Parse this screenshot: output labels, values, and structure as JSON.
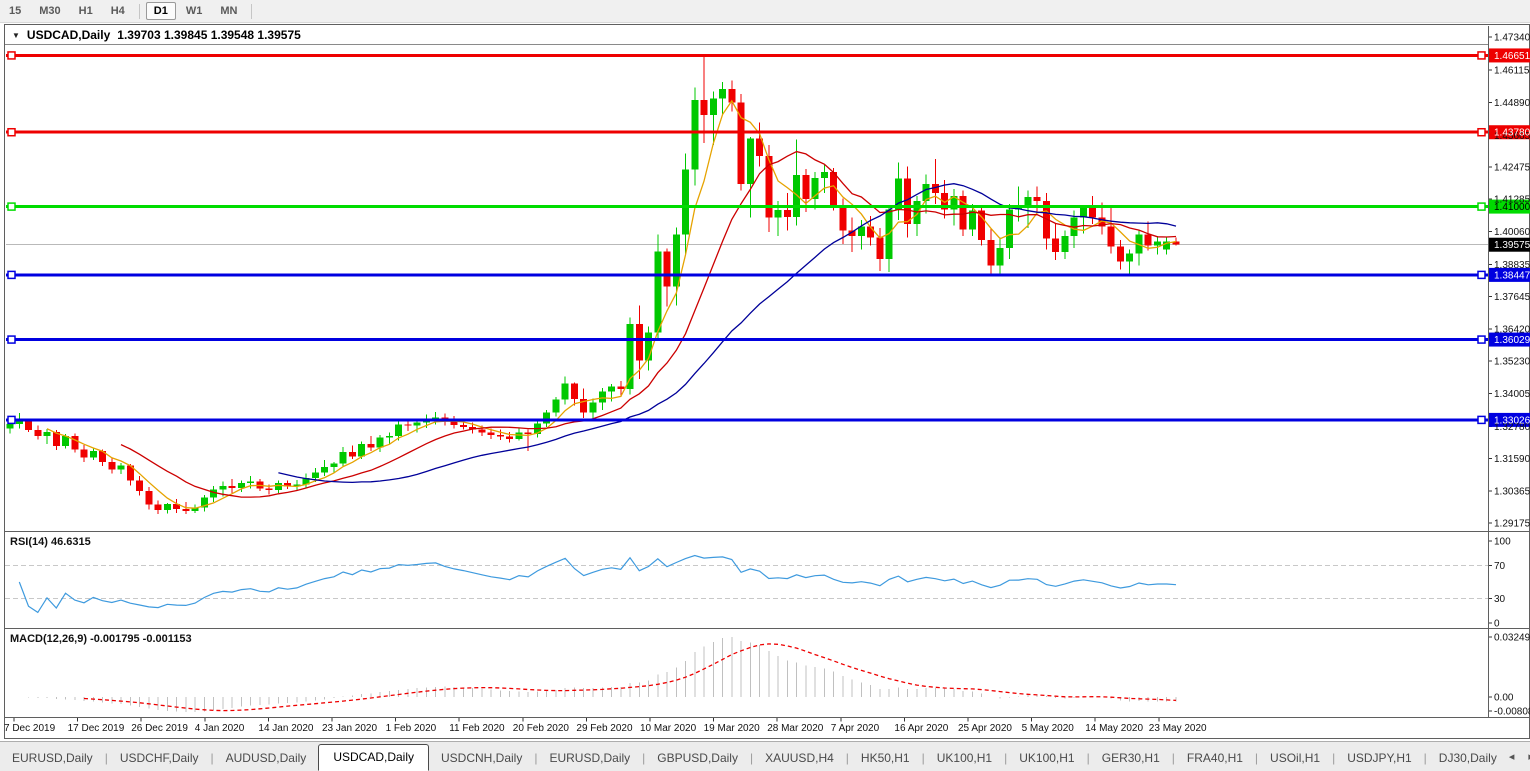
{
  "toolbar": {
    "timeframes": [
      "15",
      "M30",
      "H1",
      "H4",
      "D1",
      "W1",
      "MN"
    ],
    "active": "D1"
  },
  "chart_data": {
    "type": "candlestick",
    "title_line": "USDCAD,Daily",
    "symbol": "USDCAD",
    "timeframe": "Daily",
    "ohlc_string": "1.39703 1.39845 1.39548 1.39575",
    "current_bar": {
      "open": 1.39703,
      "high": 1.39845,
      "low": 1.39548,
      "close": 1.39575
    },
    "colors": {
      "bull": "#00c800",
      "bear": "#f00000",
      "ma_fast": "#e6a300",
      "ma_mid": "#cc0000",
      "ma_slow": "#000099",
      "current_price_line": "#b9b9b9",
      "resistance": "#ee0000",
      "pivot": "#00dc00",
      "support": "#0000e0"
    },
    "y_axis_ticks": [
      "1.47340",
      "1.46115",
      "1.44890",
      "1.43665",
      "1.42475",
      "1.41285",
      "1.40060",
      "1.38835",
      "1.37645",
      "1.36420",
      "1.35230",
      "1.34005",
      "1.32780",
      "1.31590",
      "1.30365",
      "1.29175"
    ],
    "x_axis_labels": [
      "7 Dec 2019",
      "17 Dec 2019",
      "26 Dec 2019",
      "4 Jan 2020",
      "14 Jan 2020",
      "23 Jan 2020",
      "1 Feb 2020",
      "11 Feb 2020",
      "20 Feb 2020",
      "29 Feb 2020",
      "10 Mar 2020",
      "19 Mar 2020",
      "28 Mar 2020",
      "7 Apr 2020",
      "16 Apr 2020",
      "25 Apr 2020",
      "5 May 2020",
      "14 May 2020",
      "23 May 2020"
    ],
    "levels": [
      {
        "price": 1.46651,
        "label": "1.46651",
        "color": "#ee0000",
        "kind": "resistance"
      },
      {
        "price": 1.4378,
        "label": "1.43780",
        "color": "#ee0000",
        "kind": "resistance"
      },
      {
        "price": 1.41,
        "label": "1.41000",
        "color": "#00dc00",
        "kind": "pivot"
      },
      {
        "price": 1.38447,
        "label": "1.38447",
        "color": "#0000e0",
        "kind": "support"
      },
      {
        "price": 1.36029,
        "label": "1.36029",
        "color": "#0000e0",
        "kind": "support"
      },
      {
        "price": 1.33026,
        "label": "1.33026",
        "color": "#0000e0",
        "kind": "support"
      }
    ],
    "current_price": {
      "value": 1.39575,
      "label": "1.39575",
      "badge_color": "#000000"
    },
    "moving_averages": [
      {
        "period": 5,
        "color": "#e6a300"
      },
      {
        "period": 13,
        "color": "#cc0000"
      },
      {
        "period": 30,
        "color": "#000099"
      }
    ],
    "bars": [
      [
        1.327,
        1.3302,
        1.3252,
        1.3288
      ],
      [
        1.3288,
        1.3328,
        1.327,
        1.3296
      ],
      [
        1.3296,
        1.3308,
        1.3258,
        1.3265
      ],
      [
        1.3265,
        1.3282,
        1.323,
        1.3242
      ],
      [
        1.3242,
        1.3268,
        1.3212,
        1.3258
      ],
      [
        1.3258,
        1.3265,
        1.319,
        1.3205
      ],
      [
        1.3205,
        1.325,
        1.3195,
        1.3242
      ],
      [
        1.3242,
        1.3252,
        1.318,
        1.3192
      ],
      [
        1.3192,
        1.3208,
        1.3145,
        1.3162
      ],
      [
        1.3162,
        1.3198,
        1.3152,
        1.3186
      ],
      [
        1.3186,
        1.3192,
        1.313,
        1.3146
      ],
      [
        1.3146,
        1.3162,
        1.3102,
        1.3118
      ],
      [
        1.3118,
        1.3142,
        1.31,
        1.3132
      ],
      [
        1.3132,
        1.3138,
        1.3058,
        1.3076
      ],
      [
        1.3076,
        1.3092,
        1.302,
        1.3036
      ],
      [
        1.3036,
        1.3052,
        1.2968,
        1.2986
      ],
      [
        1.2986,
        1.3002,
        1.295,
        1.2966
      ],
      [
        1.2966,
        1.2992,
        1.2952,
        1.2988
      ],
      [
        1.2988,
        1.3006,
        1.2954,
        1.297
      ],
      [
        1.297,
        1.2996,
        1.295,
        1.2962
      ],
      [
        1.2962,
        1.2986,
        1.2955,
        1.2976
      ],
      [
        1.2976,
        1.3022,
        1.296,
        1.3012
      ],
      [
        1.3012,
        1.3056,
        1.2996,
        1.3042
      ],
      [
        1.3042,
        1.3072,
        1.3016,
        1.3056
      ],
      [
        1.3056,
        1.3082,
        1.303,
        1.3048
      ],
      [
        1.3048,
        1.3076,
        1.3034,
        1.3066
      ],
      [
        1.3066,
        1.3092,
        1.3046,
        1.3072
      ],
      [
        1.3072,
        1.3082,
        1.3036,
        1.3046
      ],
      [
        1.3046,
        1.3062,
        1.3024,
        1.304
      ],
      [
        1.304,
        1.3076,
        1.303,
        1.3066
      ],
      [
        1.3066,
        1.3076,
        1.3044,
        1.3054
      ],
      [
        1.3054,
        1.3078,
        1.304,
        1.3062
      ],
      [
        1.3062,
        1.3102,
        1.3046,
        1.3086
      ],
      [
        1.3086,
        1.3122,
        1.307,
        1.3106
      ],
      [
        1.3106,
        1.3152,
        1.3092,
        1.3126
      ],
      [
        1.3126,
        1.3146,
        1.3106,
        1.314
      ],
      [
        1.314,
        1.3202,
        1.313,
        1.3182
      ],
      [
        1.3182,
        1.3206,
        1.3156,
        1.3166
      ],
      [
        1.3166,
        1.3222,
        1.3156,
        1.3212
      ],
      [
        1.3212,
        1.3242,
        1.3186,
        1.32
      ],
      [
        1.32,
        1.3246,
        1.3182,
        1.3236
      ],
      [
        1.3236,
        1.3256,
        1.3212,
        1.3242
      ],
      [
        1.3242,
        1.3302,
        1.3226,
        1.3286
      ],
      [
        1.3286,
        1.3306,
        1.3262,
        1.3282
      ],
      [
        1.3282,
        1.3302,
        1.3256,
        1.3292
      ],
      [
        1.3292,
        1.3322,
        1.3272,
        1.3306
      ],
      [
        1.3306,
        1.3332,
        1.3286,
        1.3312
      ],
      [
        1.3312,
        1.3326,
        1.3282,
        1.3296
      ],
      [
        1.3296,
        1.3318,
        1.327,
        1.3284
      ],
      [
        1.3284,
        1.3302,
        1.3266,
        1.3276
      ],
      [
        1.3276,
        1.3292,
        1.3252,
        1.3266
      ],
      [
        1.3266,
        1.3282,
        1.3242,
        1.3256
      ],
      [
        1.3256,
        1.327,
        1.3232,
        1.3246
      ],
      [
        1.3246,
        1.3266,
        1.3228,
        1.324
      ],
      [
        1.324,
        1.3258,
        1.3218,
        1.3232
      ],
      [
        1.3232,
        1.3272,
        1.3226,
        1.3256
      ],
      [
        1.3256,
        1.3266,
        1.3186,
        1.325
      ],
      [
        1.325,
        1.33,
        1.3236,
        1.329
      ],
      [
        1.329,
        1.334,
        1.3276,
        1.333
      ],
      [
        1.333,
        1.3388,
        1.3316,
        1.3378
      ],
      [
        1.3378,
        1.3465,
        1.336,
        1.3438
      ],
      [
        1.3438,
        1.3442,
        1.3356,
        1.338
      ],
      [
        1.338,
        1.342,
        1.331,
        1.333
      ],
      [
        1.333,
        1.3382,
        1.3304,
        1.3368
      ],
      [
        1.3368,
        1.3422,
        1.334,
        1.3408
      ],
      [
        1.3408,
        1.3436,
        1.3372,
        1.3428
      ],
      [
        1.3428,
        1.3448,
        1.3388,
        1.3418
      ],
      [
        1.3418,
        1.3686,
        1.3398,
        1.3662
      ],
      [
        1.3662,
        1.373,
        1.3456,
        1.3524
      ],
      [
        1.3524,
        1.3652,
        1.3488,
        1.363
      ],
      [
        1.363,
        1.3996,
        1.3602,
        1.3932
      ],
      [
        1.3932,
        1.3944,
        1.3726,
        1.3802
      ],
      [
        1.3802,
        1.4022,
        1.373,
        1.3996
      ],
      [
        1.3996,
        1.4298,
        1.3918,
        1.4238
      ],
      [
        1.4238,
        1.4546,
        1.4178,
        1.4498
      ],
      [
        1.4498,
        1.4668,
        1.4338,
        1.4442
      ],
      [
        1.4442,
        1.453,
        1.433,
        1.4505
      ],
      [
        1.4505,
        1.4565,
        1.444,
        1.454
      ],
      [
        1.454,
        1.4572,
        1.4455,
        1.449
      ],
      [
        1.449,
        1.452,
        1.416,
        1.4185
      ],
      [
        1.4185,
        1.436,
        1.406,
        1.4355
      ],
      [
        1.4355,
        1.4415,
        1.425,
        1.429
      ],
      [
        1.429,
        1.433,
        1.4005,
        1.406
      ],
      [
        1.406,
        1.412,
        1.399,
        1.4088
      ],
      [
        1.4088,
        1.415,
        1.401,
        1.4062
      ],
      [
        1.4062,
        1.435,
        1.403,
        1.4218
      ],
      [
        1.4218,
        1.424,
        1.408,
        1.4129
      ],
      [
        1.4129,
        1.423,
        1.409,
        1.4206
      ],
      [
        1.4206,
        1.426,
        1.415,
        1.423
      ],
      [
        1.423,
        1.4245,
        1.4085,
        1.4105
      ],
      [
        1.4105,
        1.413,
        1.396,
        1.401
      ],
      [
        1.401,
        1.406,
        1.393,
        1.399
      ],
      [
        1.399,
        1.405,
        1.394,
        1.4025
      ],
      [
        1.4025,
        1.4065,
        1.3955,
        1.3985
      ],
      [
        1.3985,
        1.402,
        1.386,
        1.3905
      ],
      [
        1.3905,
        1.4105,
        1.3855,
        1.409
      ],
      [
        1.409,
        1.4265,
        1.405,
        1.4205
      ],
      [
        1.4205,
        1.425,
        1.3985,
        1.4035
      ],
      [
        1.4035,
        1.414,
        1.399,
        1.412
      ],
      [
        1.412,
        1.422,
        1.4075,
        1.4185
      ],
      [
        1.4185,
        1.4278,
        1.411,
        1.415
      ],
      [
        1.415,
        1.42,
        1.4055,
        1.409
      ],
      [
        1.409,
        1.4165,
        1.403,
        1.414
      ],
      [
        1.414,
        1.416,
        1.399,
        1.4015
      ],
      [
        1.4015,
        1.411,
        1.399,
        1.4085
      ],
      [
        1.4085,
        1.4105,
        1.3955,
        1.3975
      ],
      [
        1.3975,
        1.402,
        1.385,
        1.388
      ],
      [
        1.388,
        1.3985,
        1.3845,
        1.3945
      ],
      [
        1.3945,
        1.411,
        1.3905,
        1.409
      ],
      [
        1.409,
        1.4175,
        1.4045,
        1.4095
      ],
      [
        1.4095,
        1.416,
        1.402,
        1.4135
      ],
      [
        1.4135,
        1.4175,
        1.408,
        1.412
      ],
      [
        1.412,
        1.415,
        1.394,
        1.398
      ],
      [
        1.398,
        1.4035,
        1.39,
        1.393
      ],
      [
        1.393,
        1.401,
        1.3905,
        1.399
      ],
      [
        1.399,
        1.4085,
        1.3945,
        1.406
      ],
      [
        1.406,
        1.4105,
        1.4,
        1.4095
      ],
      [
        1.4095,
        1.414,
        1.4035,
        1.406
      ],
      [
        1.406,
        1.4115,
        1.3995,
        1.4025
      ],
      [
        1.4025,
        1.4095,
        1.3925,
        1.395
      ],
      [
        1.395,
        1.3975,
        1.3865,
        1.3895
      ],
      [
        1.3895,
        1.394,
        1.385,
        1.3925
      ],
      [
        1.3925,
        1.401,
        1.388,
        1.3995
      ],
      [
        1.3995,
        1.4045,
        1.3935,
        1.3955
      ],
      [
        1.3955,
        1.399,
        1.392,
        1.397
      ],
      [
        1.394,
        1.3985,
        1.392,
        1.397
      ],
      [
        1.39703,
        1.39845,
        1.39548,
        1.39575
      ]
    ],
    "indicators": {
      "rsi": {
        "title": "RSI(14) 46.6315",
        "name": "RSI",
        "period": 14,
        "current": 46.6315,
        "axis_ticks": [
          100,
          70,
          30,
          0
        ],
        "guide_levels": [
          70,
          30
        ],
        "line_color": "#3e9ade"
      },
      "macd": {
        "title": "MACD(12,26,9) -0.001795 -0.001153",
        "fast": 12,
        "slow": 26,
        "signal_period": 9,
        "main_value": -0.001795,
        "signal_value": -0.001153,
        "axis_ticks": [
          "0.032493",
          "0.00",
          "-0.008086"
        ],
        "axis_max": 0.032493,
        "axis_min": -0.008086,
        "histogram_color": "#c0c0c0",
        "signal_color": "#ee0000"
      }
    }
  },
  "tabs": {
    "items": [
      "EURUSD,Daily",
      "USDCHF,Daily",
      "AUDUSD,Daily",
      "USDCAD,Daily",
      "USDCNH,Daily",
      "EURUSD,Daily",
      "GBPUSD,Daily",
      "XAUUSD,H4",
      "HK50,H1",
      "UK100,H1",
      "UK100,H1",
      "GER30,H1",
      "FRA40,H1",
      "USOil,H1",
      "USDJPY,H1",
      "DJ30,Daily"
    ],
    "active_index": 3,
    "scroll_left": "◂",
    "scroll_right": "▸"
  }
}
